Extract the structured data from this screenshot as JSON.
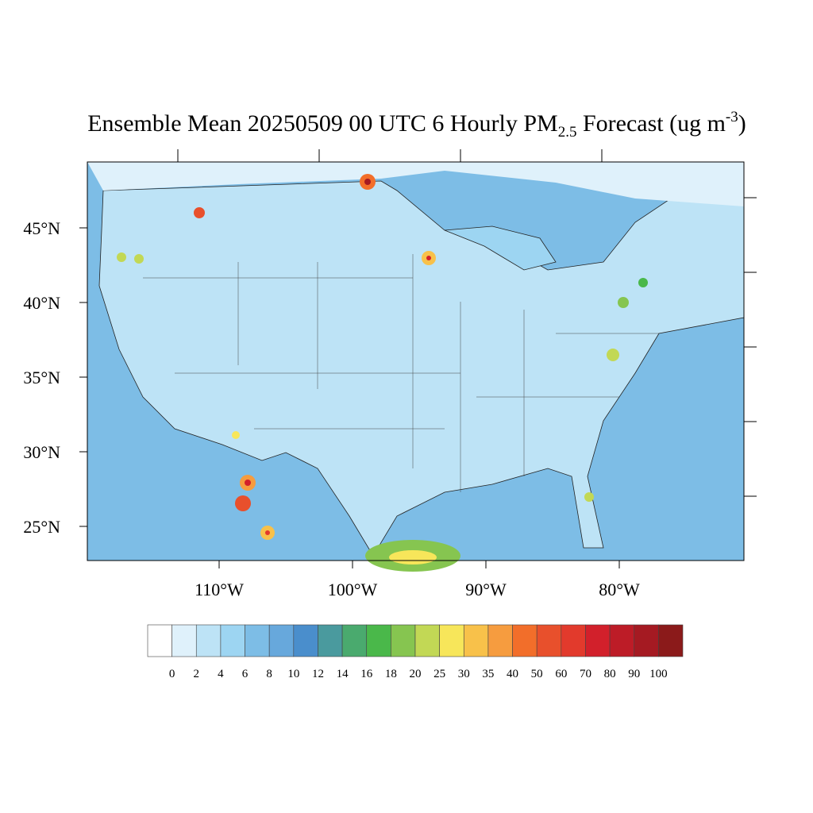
{
  "map": {
    "title": {
      "main": "Ensemble Mean 20250509 00 UTC 6 Hourly PM",
      "sub": "2.5",
      "rest": " Forecast (ug m",
      "sup": "-3",
      "end": ")"
    },
    "lat_ticks": [
      {
        "value": 45,
        "label": "45°N"
      },
      {
        "value": 40,
        "label": "40°N"
      },
      {
        "value": 35,
        "label": "35°N"
      },
      {
        "value": 30,
        "label": "30°N"
      },
      {
        "value": 25,
        "label": "25°N"
      }
    ],
    "lon_ticks": [
      {
        "value": -110,
        "label": "110°W"
      },
      {
        "value": -100,
        "label": "100°W"
      },
      {
        "value": -90,
        "label": "90°W"
      },
      {
        "value": -80,
        "label": "80°W"
      }
    ],
    "colorbar": {
      "levels": [
        0,
        2,
        4,
        6,
        8,
        10,
        12,
        14,
        16,
        18,
        20,
        25,
        30,
        35,
        40,
        50,
        60,
        70,
        80,
        90,
        100
      ],
      "colors": [
        "#ffffff",
        "#dff1fb",
        "#bde3f6",
        "#9dd5f2",
        "#7dbde6",
        "#67a8dc",
        "#4a8ecc",
        "#4a9a9e",
        "#4aaa6e",
        "#4ab84a",
        "#86c550",
        "#c2d855",
        "#f7e65a",
        "#f8c14a",
        "#f69c3f",
        "#f26e2a",
        "#e8502c",
        "#e23a2c",
        "#d2202b",
        "#bd1c27",
        "#a51a22",
        "#8b1a1a"
      ]
    }
  }
}
